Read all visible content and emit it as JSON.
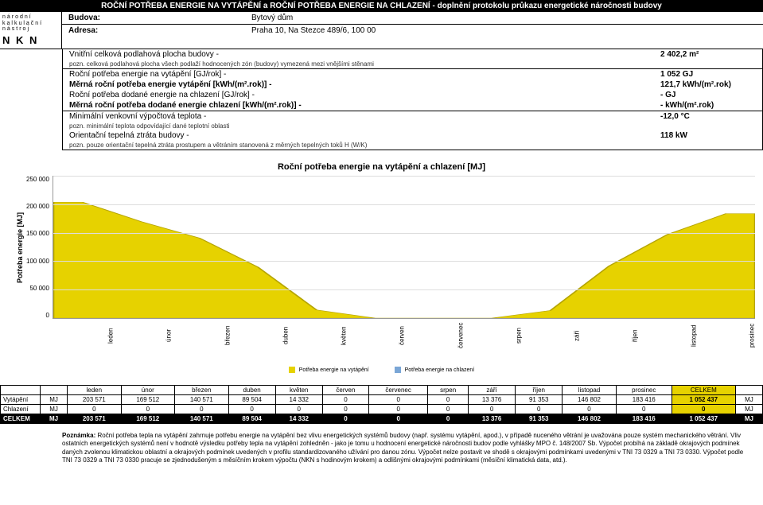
{
  "header": {
    "title": "ROČNÍ POTŘEBA ENERGIE NA VYTÁPĚNÍ a ROČNÍ POTŘEBA ENERGIE NA CHLAZENÍ - doplnění protokolu průkazu energetické náročnosti budovy"
  },
  "logo": {
    "line1": "národní",
    "line2": "kalkulační",
    "line3": "nástroj",
    "abbr": "N K N"
  },
  "building": {
    "budova_label": "Budova:",
    "budova_value": "Bytový dům",
    "adresa_label": "Adresa:",
    "adresa_value": "Praha 10, Na Stezce 489/6, 100 00"
  },
  "metrics": {
    "floor_area_label": "Vnitřní celková podlahová plocha budovy -",
    "floor_area_value": "2 402,2 m²",
    "floor_area_note": "pozn. celková podlahová plocha všech podlaží hodnocených zón (budovy) vymezená mezi vnějšími stěnami",
    "heat_annual_label": "Roční potřeba energie na vytápění [GJ/rok] -",
    "heat_annual_value": "1 052 GJ",
    "heat_specific_label": "Měrná roční potřeba energie vytápění [kWh/(m².rok)] -",
    "heat_specific_value": "121,7 kWh/(m².rok)",
    "cool_annual_label": "Roční potřeba dodané energie na chlazení [GJ/rok] -",
    "cool_annual_value": "- GJ",
    "cool_specific_label": "Měrná roční potřeba dodané energie chlazení [kWh/(m².rok)] -",
    "cool_specific_value": "- kWh/(m².rok)",
    "min_temp_label": "Minimální venkovní výpočtová teplota -",
    "min_temp_value": "-12,0 °C",
    "min_temp_note": "pozn. minimální teplota odpovídající dané teplotní oblasti",
    "heat_loss_label": "Orientační tepelná ztráta budovy -",
    "heat_loss_value": "118 kW",
    "heat_loss_note": "pozn. pouze orientační tepelná ztráta prostupem a větráním stanovená z měrných tepelných toků H (W/K)"
  },
  "chart": {
    "title": "Roční potřeba energie na vytápění a chlazení [MJ]",
    "y_label": "Potřeba energie [MJ]",
    "y_max": 250000,
    "y_ticks": [
      "250 000",
      "200 000",
      "150 000",
      "100 000",
      "50 000",
      "0"
    ],
    "months": [
      "leden",
      "únor",
      "březen",
      "duben",
      "květen",
      "červen",
      "červenec",
      "srpen",
      "září",
      "říjen",
      "listopad",
      "prosinec"
    ],
    "heating_values": [
      203571,
      169512,
      140571,
      89504,
      14332,
      0,
      0,
      0,
      13376,
      91353,
      146802,
      183416
    ],
    "fill_color": "#e6d200",
    "background_color": "#ffffff",
    "grid_color": "#dddddd",
    "legend_heat": "Potřeba energie na vytápění",
    "legend_cool": "Potřeba energie na chlazení",
    "legend_heat_color": "#e6d200",
    "legend_cool_color": "#7aa6d6"
  },
  "table": {
    "cols": [
      "",
      "",
      "leden",
      "únor",
      "březen",
      "duben",
      "květen",
      "červen",
      "červenec",
      "srpen",
      "září",
      "říjen",
      "listopad",
      "prosinec",
      "CELKEM",
      ""
    ],
    "rows": [
      {
        "label": "Vytápění",
        "unit": "MJ",
        "vals": [
          "203 571",
          "169 512",
          "140 571",
          "89 504",
          "14 332",
          "0",
          "0",
          "0",
          "13 376",
          "91 353",
          "146 802",
          "183 416"
        ],
        "total": "1 052 437",
        "unit2": "MJ"
      },
      {
        "label": "Chlazení",
        "unit": "MJ",
        "vals": [
          "0",
          "0",
          "0",
          "0",
          "0",
          "0",
          "0",
          "0",
          "0",
          "0",
          "0",
          "0"
        ],
        "total": "0",
        "unit2": "MJ"
      },
      {
        "label": "CELKEM",
        "unit": "MJ",
        "vals": [
          "203 571",
          "169 512",
          "140 571",
          "89 504",
          "14 332",
          "0",
          "0",
          "0",
          "13 376",
          "91 353",
          "146 802",
          "183 416"
        ],
        "total": "1 052 437",
        "unit2": "MJ"
      }
    ]
  },
  "footnote": {
    "label": "Poznámka:",
    "text": "Roční potřeba tepla na vytápění zahrnuje potřebu energie na vytápění bez vlivu energetických systémů budovy (např. systému vytápění, apod.), v případě nuceného větrání je uvažována pouze systém mechanického větrání. Vliv ostatních energetických systémů není v hodnotě výsledku potřeby tepla na vytápění zohledněn - jako je tomu u hodnocení energetické náročnosti budov podle vyhlášky MPO č. 148/2007 Sb. Výpočet probíhá na základě okrajových podmínek daných zvolenou klimatickou oblastní a okrajových podmínek uvedených v profilu standardizovaného užívání pro danou zónu. Výpočet nelze postavit ve shodě s okrajovými podmínkami uvedenými v TNI 73 0329 a TNI 73 0330. Výpočet podle TNI 73 0329 a TNI 73 0330 pracuje se zjednodušeným s měsíčním krokem výpočtu (NKN s hodinovým krokem) a odlišnými okrajovými podmínkami (měsíční klimatická data, atd.)."
  }
}
